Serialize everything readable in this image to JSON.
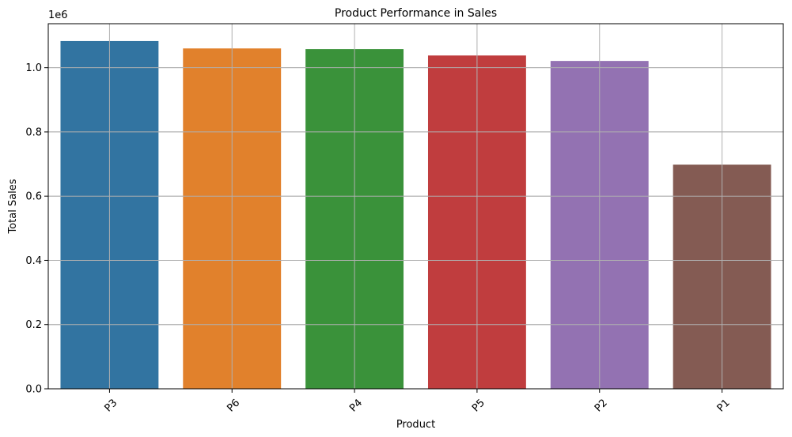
{
  "chart_data": {
    "type": "bar",
    "title": "Product Performance in Sales",
    "xlabel": "Product",
    "ylabel": "Total Sales",
    "y_offset_label": "1e6",
    "categories": [
      "P3",
      "P6",
      "P4",
      "P5",
      "P2",
      "P1"
    ],
    "values": [
      1083000,
      1060000,
      1058000,
      1038000,
      1021000,
      698000
    ],
    "colors": [
      "#3274a1",
      "#e1812c",
      "#3a923a",
      "#c03d3e",
      "#9372b2",
      "#845b53"
    ],
    "ylim": [
      0,
      1137000
    ],
    "yticks": [
      0,
      200000,
      400000,
      600000,
      800000,
      1000000
    ],
    "ytick_labels": [
      "0.0",
      "0.2",
      "0.4",
      "0.6",
      "0.8",
      "1.0"
    ],
    "grid": true,
    "xtick_rotation": 45
  }
}
